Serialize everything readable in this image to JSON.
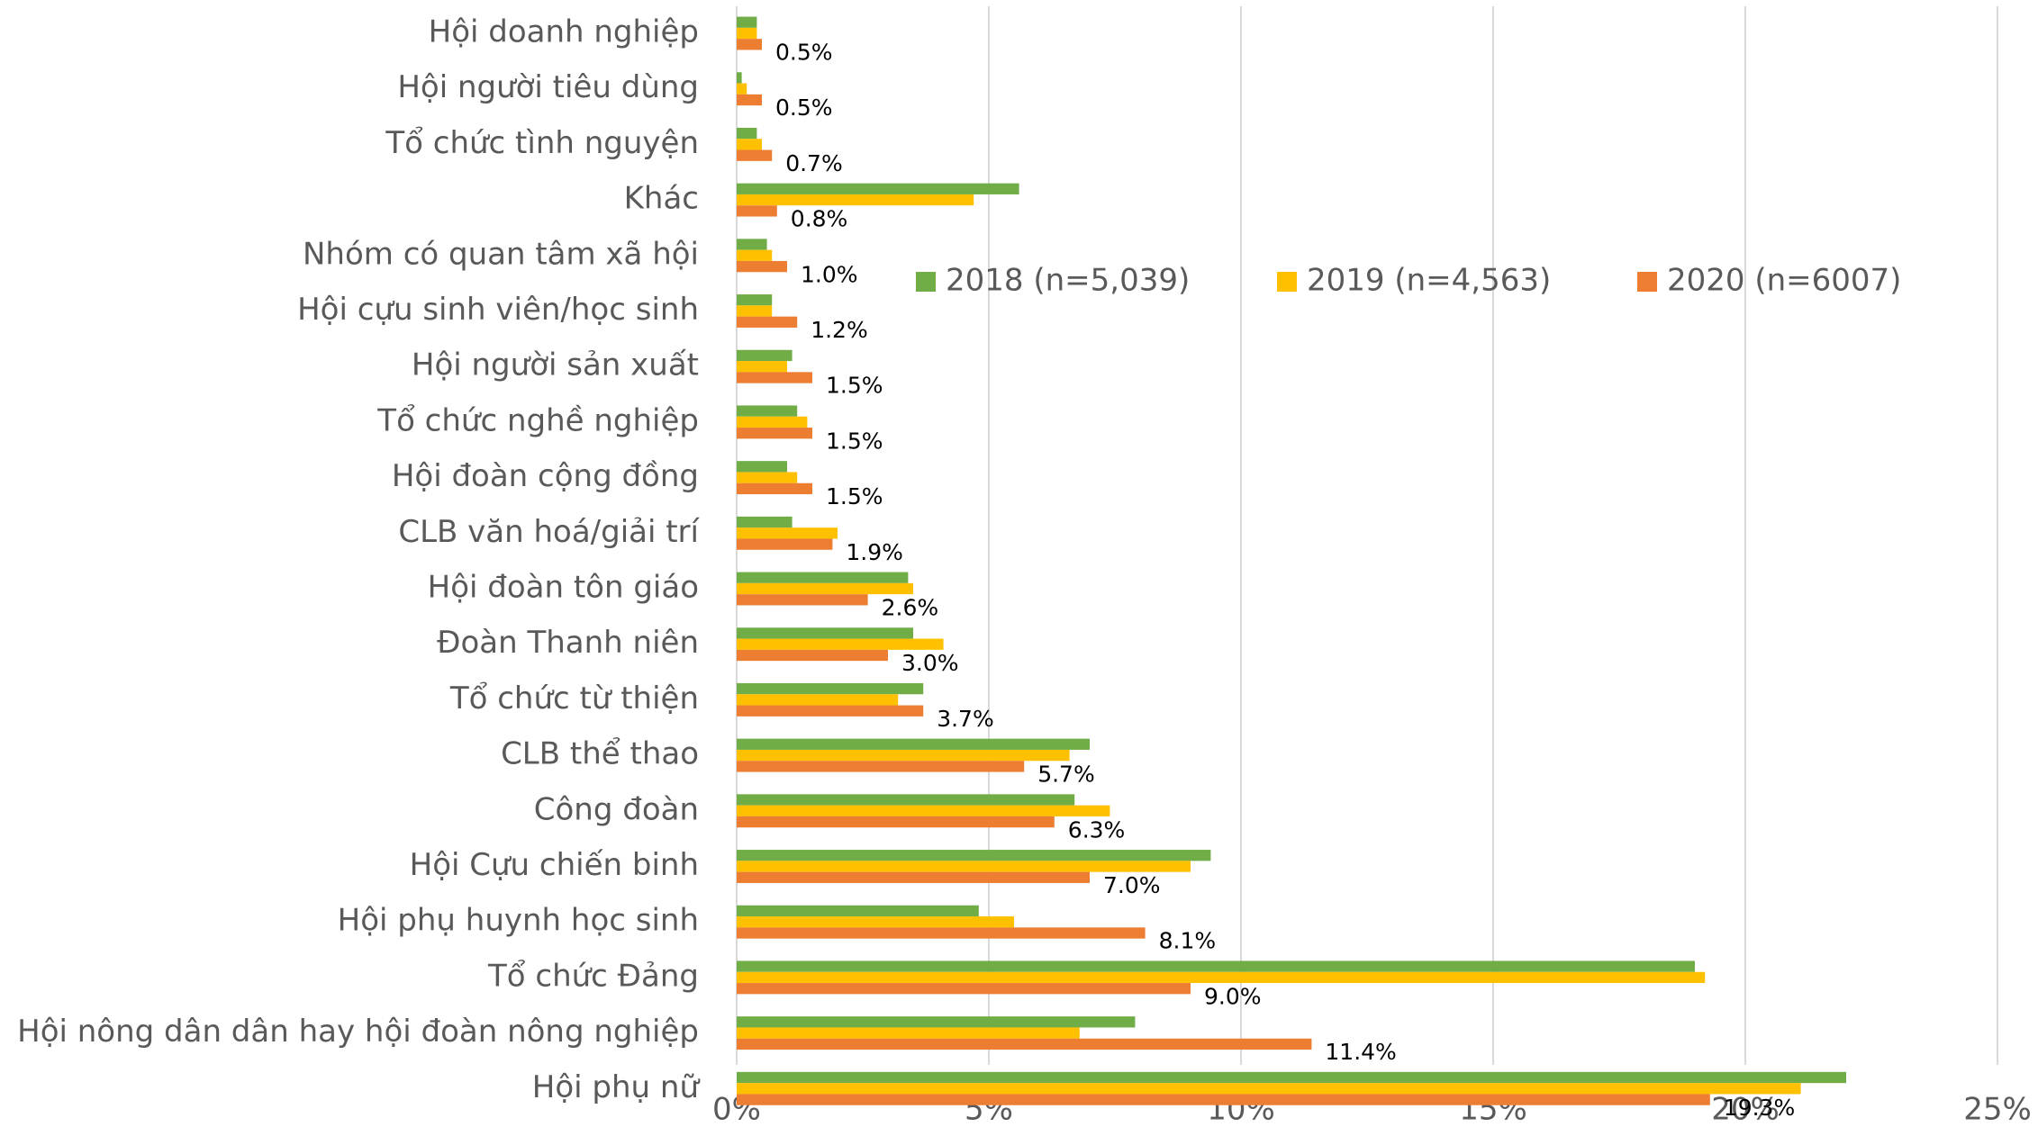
{
  "chart_data": {
    "type": "bar",
    "orientation": "horizontal",
    "categories": [
      "Hội doanh nghiệp",
      "Hội người tiêu dùng",
      "Tổ chức tình nguyện",
      "Khác",
      "Nhóm có quan tâm xã hội",
      "Hội cựu sinh viên/học sinh",
      "Hội người sản xuất",
      "Tổ chức nghề nghiệp",
      "Hội đoàn cộng đồng",
      "CLB văn hoá/giải trí",
      "Hội đoàn tôn giáo",
      "Đoàn Thanh niên",
      "Tổ chức từ thiện",
      "CLB thể thao",
      "Công đoàn",
      "Hội Cựu chiến binh",
      "Hội phụ huynh học sinh",
      "Tổ chức Đảng",
      "Hội nông dân dân hay hội đoàn nông nghiệp",
      "Hội phụ nữ"
    ],
    "series": [
      {
        "name": "2018 (n=5,039)",
        "color": "#70ad47",
        "values": [
          0.4,
          0.1,
          0.4,
          5.6,
          0.6,
          0.7,
          1.1,
          1.2,
          1.0,
          1.1,
          3.4,
          3.5,
          3.7,
          7.0,
          6.7,
          9.4,
          4.8,
          19.0,
          7.9,
          22.0
        ]
      },
      {
        "name": "2019 (n=4,563)",
        "color": "#ffc000",
        "values": [
          0.4,
          0.2,
          0.5,
          4.7,
          0.7,
          0.7,
          1.0,
          1.4,
          1.2,
          2.0,
          3.5,
          4.1,
          3.2,
          6.6,
          7.4,
          9.0,
          5.5,
          19.2,
          6.8,
          21.1
        ]
      },
      {
        "name": "2020 (n=6007)",
        "color": "#ed7d31",
        "values": [
          0.5,
          0.5,
          0.7,
          0.8,
          1.0,
          1.2,
          1.5,
          1.5,
          1.5,
          1.9,
          2.6,
          3.0,
          3.7,
          5.7,
          6.3,
          7.0,
          8.1,
          9.0,
          11.4,
          19.3
        ],
        "value_labels": [
          "0.5%",
          "0.5%",
          "0.7%",
          "0.8%",
          "1.0%",
          "1.2%",
          "1.5%",
          "1.5%",
          "1.5%",
          "1.9%",
          "2.6%",
          "3.0%",
          "3.7%",
          "5.7%",
          "6.3%",
          "7.0%",
          "8.1%",
          "9.0%",
          "11.4%",
          "19.3%"
        ]
      }
    ],
    "xlim": [
      0,
      25
    ],
    "xticks": [
      {
        "value": 0,
        "label": "0%"
      },
      {
        "value": 5,
        "label": "5%"
      },
      {
        "value": 10,
        "label": "10%"
      },
      {
        "value": 15,
        "label": "15%"
      },
      {
        "value": 20,
        "label": "20%"
      },
      {
        "value": 25,
        "label": "25%"
      }
    ],
    "grid": true,
    "legend": "top-right"
  }
}
